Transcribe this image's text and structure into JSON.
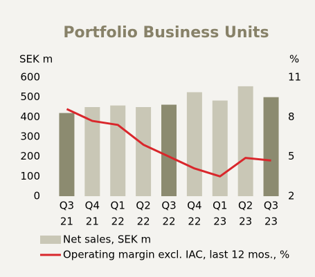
{
  "chart_data": {
    "type": "bar_line",
    "title": "Portfolio Business Units",
    "y_label": "SEK m",
    "y2_label": "%",
    "categories": [
      [
        "Q3",
        "21"
      ],
      [
        "Q4",
        "21"
      ],
      [
        "Q1",
        "22"
      ],
      [
        "Q2",
        "22"
      ],
      [
        "Q3",
        "22"
      ],
      [
        "Q4",
        "22"
      ],
      [
        "Q1",
        "23"
      ],
      [
        "Q2",
        "23"
      ],
      [
        "Q3",
        "23"
      ]
    ],
    "ylim": [
      0,
      600
    ],
    "yticks": [
      0,
      100,
      200,
      300,
      400,
      500,
      600
    ],
    "y2lim": [
      2,
      11
    ],
    "y2ticks": [
      2,
      5,
      8,
      11
    ],
    "series": [
      {
        "name": "Net sales, SEK m",
        "type": "bar",
        "color": "#c9c7b6",
        "colors": [
          "#8c8b70",
          "#c9c7b6",
          "#c9c7b6",
          "#c9c7b6",
          "#8c8b70",
          "#c9c7b6",
          "#c9c7b6",
          "#c9c7b6",
          "#8c8b70"
        ],
        "values": [
          420,
          450,
          458,
          450,
          462,
          525,
          483,
          555,
          500
        ]
      },
      {
        "name": "Operating margin excl. IAC, last 12 mos., %",
        "type": "line",
        "axis": "y2",
        "color": "#d9262b",
        "values": [
          8.6,
          7.7,
          7.4,
          5.9,
          5.0,
          4.1,
          3.5,
          4.9,
          4.7
        ]
      }
    ]
  }
}
